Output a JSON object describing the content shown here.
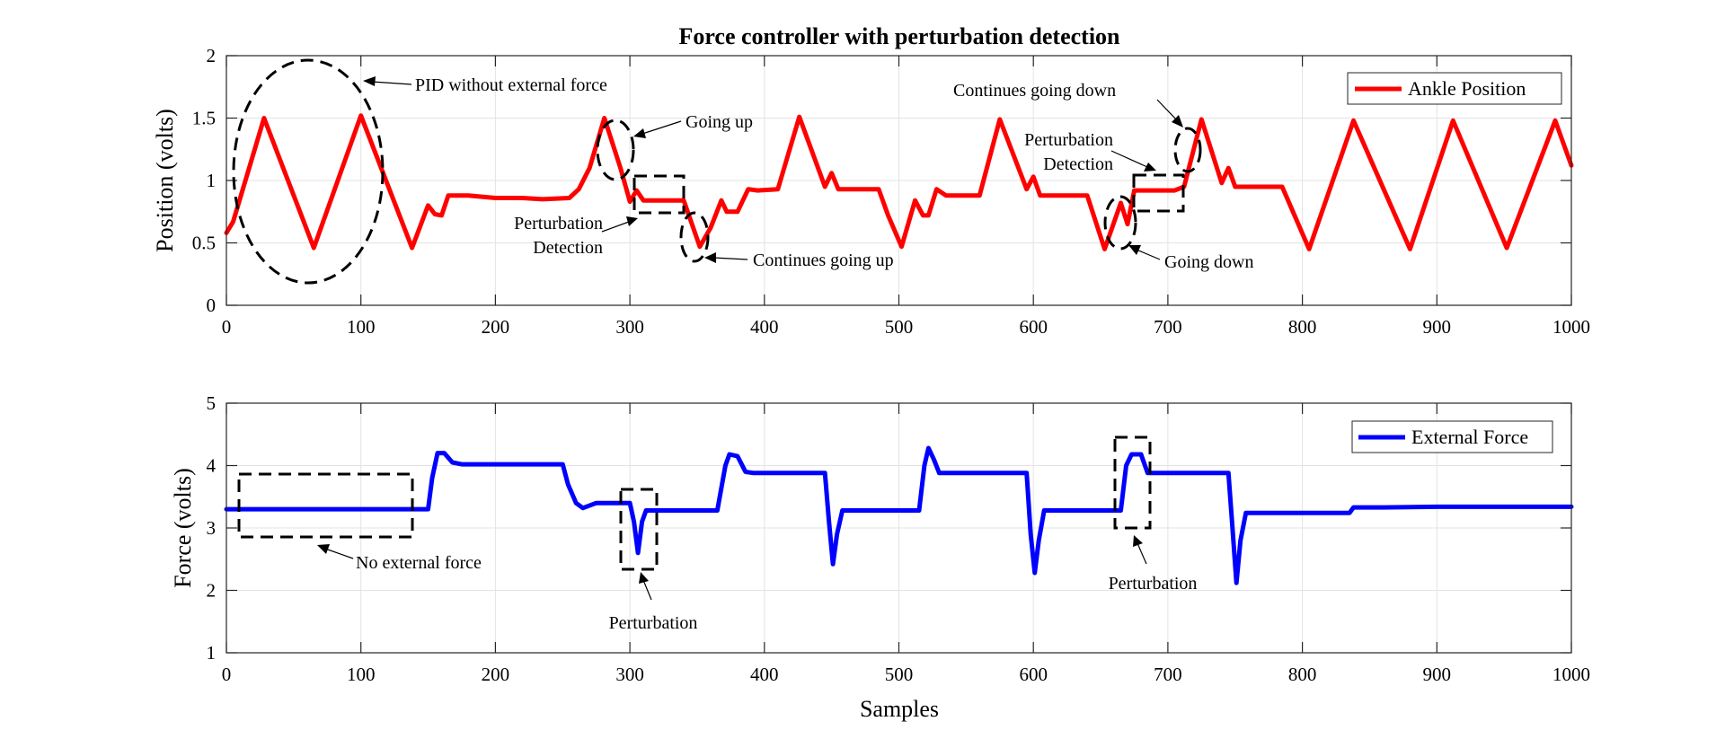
{
  "figure_title": "Force controller with perturbation detection",
  "chart_data": [
    {
      "id": "top",
      "type": "line",
      "title": "Force controller with perturbation detection",
      "xlabel": "",
      "ylabel": "Position (volts)",
      "xlim": [
        0,
        1000
      ],
      "ylim": [
        0,
        2
      ],
      "xticks": [
        0,
        100,
        200,
        300,
        400,
        500,
        600,
        700,
        800,
        900,
        1000
      ],
      "yticks": [
        0,
        0.5,
        1,
        1.5,
        2
      ],
      "grid": true,
      "legend_position": "top-right",
      "series": [
        {
          "name": "Ankle Position",
          "color": "#ff0000",
          "x": [
            0,
            5,
            28,
            65,
            100,
            138,
            150,
            155,
            160,
            165,
            170,
            180,
            200,
            220,
            235,
            255,
            262,
            270,
            281,
            293,
            300,
            305,
            310,
            320,
            340,
            352,
            360,
            368,
            372,
            380,
            388,
            395,
            410,
            426,
            445,
            450,
            455,
            462,
            480,
            485,
            492,
            502,
            512,
            518,
            522,
            528,
            535,
            545,
            560,
            575,
            595,
            600,
            605,
            610,
            625,
            640,
            653,
            665,
            670,
            675,
            680,
            685,
            695,
            705,
            712,
            725,
            740,
            745,
            750,
            755,
            770,
            785,
            805,
            838,
            880,
            912,
            952,
            988,
            1000
          ],
          "y": [
            0.58,
            0.67,
            1.5,
            0.46,
            1.52,
            0.46,
            0.8,
            0.73,
            0.72,
            0.88,
            0.88,
            0.88,
            0.86,
            0.86,
            0.85,
            0.86,
            0.93,
            1.1,
            1.5,
            1.1,
            0.83,
            0.92,
            0.84,
            0.84,
            0.84,
            0.47,
            0.62,
            0.84,
            0.75,
            0.75,
            0.93,
            0.92,
            0.93,
            1.51,
            0.95,
            1.06,
            0.93,
            0.93,
            0.93,
            0.93,
            0.72,
            0.47,
            0.84,
            0.72,
            0.72,
            0.93,
            0.88,
            0.88,
            0.88,
            1.49,
            0.93,
            1.03,
            0.88,
            0.88,
            0.88,
            0.88,
            0.45,
            0.82,
            0.65,
            0.92,
            0.92,
            0.92,
            0.92,
            0.92,
            0.95,
            1.49,
            0.98,
            1.1,
            0.95,
            0.95,
            0.95,
            0.95,
            0.45,
            1.48,
            0.45,
            1.48,
            0.46,
            1.48,
            1.12
          ]
        }
      ],
      "annotations": {
        "pid": "PID without external force",
        "going_up": "Going up",
        "pert_detect_1a": "Perturbation",
        "pert_detect_1b": "Detection",
        "continues_up": "Continues going up",
        "continues_down": "Continues going down",
        "pert_detect_2a": "Perturbation",
        "pert_detect_2b": "Detection",
        "going_down": "Going down"
      }
    },
    {
      "id": "bottom",
      "type": "line",
      "title": "",
      "xlabel": "Samples",
      "ylabel": "Force (volts)",
      "xlim": [
        0,
        1000
      ],
      "ylim": [
        1,
        5
      ],
      "xticks": [
        0,
        100,
        200,
        300,
        400,
        500,
        600,
        700,
        800,
        900,
        1000
      ],
      "yticks": [
        1,
        2,
        3,
        4,
        5
      ],
      "grid": true,
      "legend_position": "top-right",
      "series": [
        {
          "name": "External Force",
          "color": "#0000ff",
          "x": [
            0,
            150,
            153,
            157,
            162,
            168,
            175,
            250,
            254,
            260,
            265,
            275,
            300,
            303,
            306,
            309,
            312,
            318,
            350,
            365,
            371,
            374,
            380,
            386,
            392,
            445,
            448,
            451,
            454,
            458,
            470,
            515,
            519,
            522,
            526,
            530,
            540,
            595,
            598,
            601,
            604,
            608,
            620,
            665,
            669,
            673,
            680,
            685,
            690,
            745,
            748,
            751,
            754,
            758,
            770,
            835,
            838,
            860,
            900,
            950,
            1000
          ],
          "y": [
            3.3,
            3.3,
            3.8,
            4.2,
            4.2,
            4.05,
            4.02,
            4.02,
            3.7,
            3.4,
            3.32,
            3.4,
            3.4,
            3.1,
            2.6,
            3.1,
            3.28,
            3.28,
            3.28,
            3.28,
            4.0,
            4.18,
            4.15,
            3.9,
            3.88,
            3.88,
            3.1,
            2.42,
            2.9,
            3.28,
            3.28,
            3.28,
            4.0,
            4.28,
            4.1,
            3.88,
            3.88,
            3.88,
            2.9,
            2.28,
            2.8,
            3.28,
            3.28,
            3.28,
            4.0,
            4.18,
            4.18,
            3.88,
            3.88,
            3.88,
            3.0,
            2.12,
            2.8,
            3.24,
            3.24,
            3.24,
            3.33,
            3.33,
            3.34,
            3.34,
            3.34
          ]
        }
      ],
      "annotations": {
        "no_force": "No external force",
        "pert_1": "Perturbation",
        "pert_2": "Perturbation"
      }
    }
  ]
}
